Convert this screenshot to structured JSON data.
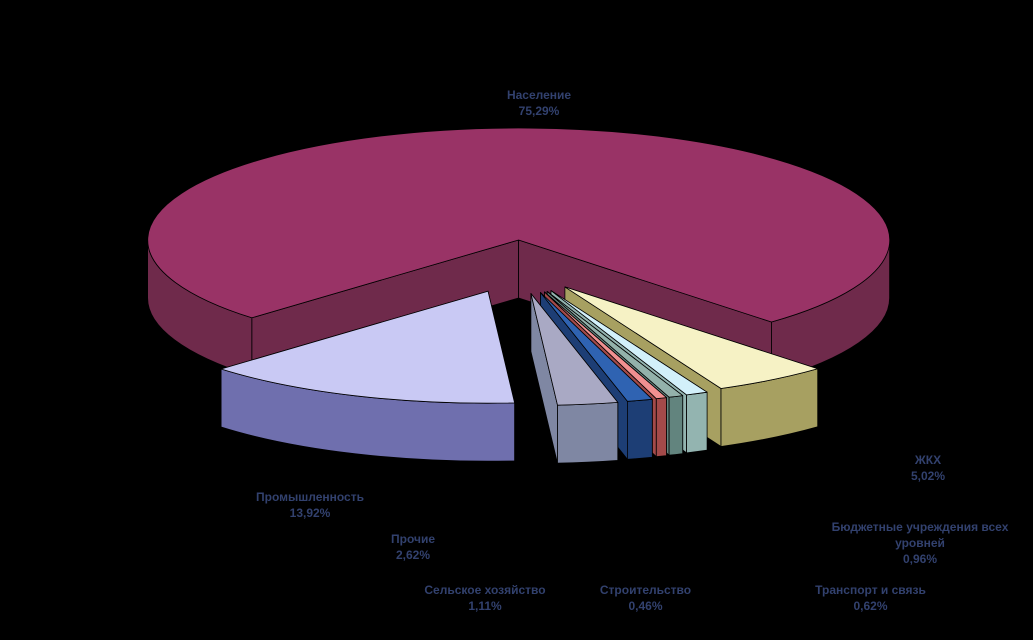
{
  "background": "#000000",
  "text_color": "#32416e",
  "chart_data": {
    "type": "pie",
    "style": "3d-exploded-pie",
    "title": "",
    "legend": "none",
    "slices": [
      {
        "label": "Население",
        "pct_label": "75,29%",
        "value": 75.29,
        "color": "#993366",
        "side_color": "#6f2a4b"
      },
      {
        "label": "Промышленность",
        "pct_label": "13,92%",
        "value": 13.92,
        "color": "#c9c9f4",
        "side_color": "#6f6fae"
      },
      {
        "label": "Прочие",
        "pct_label": "2,62%",
        "value": 2.62,
        "color": "#a9a9c4",
        "side_color": "#7f87a3"
      },
      {
        "label": "Сельское хозяйство",
        "pct_label": "1,11%",
        "value": 1.11,
        "color": "#2f63b2",
        "side_color": "#1d3e75"
      },
      {
        "label": "Строительство",
        "pct_label": "0,46%",
        "value": 0.46,
        "color": "#f19090",
        "side_color": "#a34a4a"
      },
      {
        "label": "Транспорт и связь",
        "pct_label": "0,62%",
        "value": 0.62,
        "color": "#93b2ab",
        "side_color": "#62847e"
      },
      {
        "label": "Бюджетные учреждения всех уровней",
        "pct_label": "0,96%",
        "value": 0.96,
        "color": "#d2f0fa",
        "side_color": "#93b4b0"
      },
      {
        "label": "ЖКХ",
        "pct_label": "5,02%",
        "value": 5.02,
        "color": "#f6f2c5",
        "side_color": "#a7a061"
      }
    ]
  }
}
